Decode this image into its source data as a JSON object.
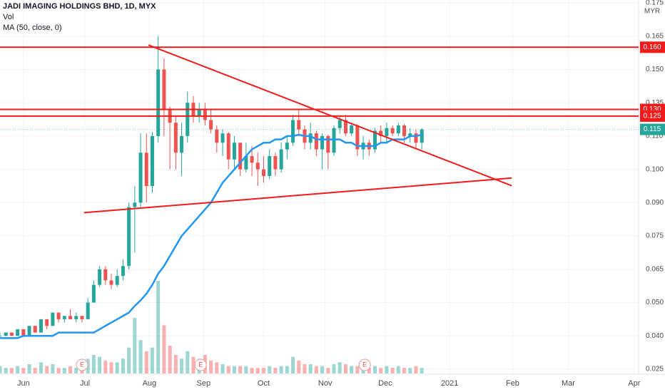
{
  "chart_data": {
    "type": "candlestick",
    "title": "JADI IMAGING HOLDINGS BHD, 1D, MYX",
    "legend_items": [
      "Vol",
      "MA (50, close, 0)"
    ],
    "currency": "MYR",
    "up_color": "#26a69a",
    "down_color": "#ef5350",
    "ma_color": "#2196f3",
    "x": [
      0,
      2,
      4,
      6,
      8,
      10,
      12,
      14,
      16,
      18,
      20,
      22,
      24,
      26,
      28,
      30,
      32,
      34,
      36,
      38,
      40,
      42,
      44,
      46,
      48,
      50,
      52,
      54,
      56,
      58,
      60,
      62,
      64,
      66,
      68,
      70,
      72,
      74,
      76,
      78,
      80,
      82,
      84,
      86,
      88,
      90,
      92,
      94,
      96,
      98,
      100,
      102,
      104,
      106,
      108,
      110,
      112,
      114,
      116,
      118,
      120,
      122,
      124,
      126,
      128,
      130,
      132,
      134,
      136,
      138,
      140,
      142,
      144
    ],
    "open": [
      0.04,
      0.04,
      0.041,
      0.04,
      0.042,
      0.04,
      0.043,
      0.041,
      0.045,
      0.043,
      0.047,
      0.045,
      0.046,
      0.045,
      0.046,
      0.045,
      0.05,
      0.058,
      0.065,
      0.06,
      0.058,
      0.062,
      0.066,
      0.088,
      0.09,
      0.105,
      0.095,
      0.11,
      0.15,
      0.13,
      0.12,
      0.105,
      0.11,
      0.135,
      0.125,
      0.13,
      0.122,
      0.115,
      0.108,
      0.112,
      0.103,
      0.108,
      0.1,
      0.104,
      0.102,
      0.1,
      0.098,
      0.104,
      0.1,
      0.106,
      0.108,
      0.122,
      0.115,
      0.108,
      0.112,
      0.106,
      0.11,
      0.105,
      0.116,
      0.122,
      0.112,
      0.118,
      0.106,
      0.108,
      0.106,
      0.114,
      0.11,
      0.116,
      0.112,
      0.118,
      0.11,
      0.112,
      0.108
    ],
    "high": [
      0.041,
      0.041,
      0.041,
      0.042,
      0.042,
      0.043,
      0.043,
      0.045,
      0.045,
      0.047,
      0.047,
      0.046,
      0.048,
      0.047,
      0.046,
      0.052,
      0.06,
      0.066,
      0.066,
      0.063,
      0.065,
      0.068,
      0.09,
      0.095,
      0.112,
      0.112,
      0.113,
      0.165,
      0.155,
      0.132,
      0.125,
      0.12,
      0.14,
      0.138,
      0.135,
      0.135,
      0.13,
      0.118,
      0.115,
      0.113,
      0.11,
      0.108,
      0.108,
      0.107,
      0.105,
      0.104,
      0.106,
      0.105,
      0.108,
      0.11,
      0.126,
      0.13,
      0.118,
      0.12,
      0.114,
      0.112,
      0.111,
      0.118,
      0.125,
      0.126,
      0.12,
      0.119,
      0.11,
      0.109,
      0.116,
      0.118,
      0.12,
      0.118,
      0.12,
      0.119,
      0.116,
      0.115,
      0.116
    ],
    "low": [
      0.04,
      0.04,
      0.04,
      0.04,
      0.04,
      0.04,
      0.041,
      0.041,
      0.042,
      0.043,
      0.044,
      0.044,
      0.045,
      0.044,
      0.044,
      0.045,
      0.05,
      0.057,
      0.058,
      0.056,
      0.057,
      0.06,
      0.065,
      0.07,
      0.088,
      0.09,
      0.093,
      0.108,
      0.11,
      0.1,
      0.1,
      0.098,
      0.108,
      0.12,
      0.12,
      0.118,
      0.112,
      0.105,
      0.104,
      0.1,
      0.1,
      0.098,
      0.099,
      0.098,
      0.095,
      0.096,
      0.097,
      0.098,
      0.099,
      0.103,
      0.107,
      0.11,
      0.106,
      0.106,
      0.104,
      0.1,
      0.1,
      0.104,
      0.112,
      0.11,
      0.11,
      0.104,
      0.103,
      0.104,
      0.105,
      0.108,
      0.108,
      0.11,
      0.11,
      0.108,
      0.108,
      0.106,
      0.106
    ],
    "close": [
      0.04,
      0.041,
      0.04,
      0.042,
      0.04,
      0.043,
      0.041,
      0.045,
      0.043,
      0.047,
      0.045,
      0.046,
      0.045,
      0.046,
      0.045,
      0.05,
      0.058,
      0.065,
      0.06,
      0.058,
      0.062,
      0.066,
      0.088,
      0.09,
      0.105,
      0.095,
      0.11,
      0.15,
      0.13,
      0.12,
      0.105,
      0.11,
      0.135,
      0.125,
      0.13,
      0.122,
      0.115,
      0.108,
      0.112,
      0.103,
      0.108,
      0.1,
      0.104,
      0.102,
      0.1,
      0.098,
      0.104,
      0.1,
      0.106,
      0.108,
      0.122,
      0.115,
      0.108,
      0.112,
      0.106,
      0.11,
      0.105,
      0.116,
      0.122,
      0.112,
      0.118,
      0.106,
      0.108,
      0.106,
      0.114,
      0.11,
      0.116,
      0.112,
      0.118,
      0.11,
      0.112,
      0.108,
      0.115
    ],
    "volume": [
      4,
      3,
      3,
      4,
      3,
      5,
      3,
      6,
      4,
      5,
      3,
      3,
      4,
      3,
      4,
      8,
      10,
      9,
      7,
      6,
      6,
      8,
      14,
      30,
      18,
      12,
      14,
      50,
      26,
      15,
      10,
      8,
      12,
      9,
      8,
      10,
      7,
      6,
      5,
      4,
      4,
      4,
      4,
      3,
      3,
      3,
      4,
      3,
      4,
      4,
      9,
      7,
      5,
      5,
      4,
      4,
      3,
      5,
      6,
      5,
      4,
      4,
      3,
      3,
      4,
      3,
      4,
      3,
      4,
      3,
      3,
      4,
      3
    ],
    "ma": [
      0.039,
      0.039,
      0.039,
      0.039,
      0.04,
      0.04,
      0.04,
      0.04,
      0.04,
      0.04,
      0.041,
      0.041,
      0.041,
      0.041,
      0.041,
      0.041,
      0.041,
      0.042,
      0.043,
      0.044,
      0.045,
      0.046,
      0.047,
      0.049,
      0.051,
      0.054,
      0.058,
      0.063,
      0.066,
      0.069,
      0.072,
      0.075,
      0.078,
      0.081,
      0.084,
      0.087,
      0.09,
      0.093,
      0.096,
      0.098,
      0.1,
      0.102,
      0.104,
      0.106,
      0.107,
      0.108,
      0.108,
      0.109,
      0.109,
      0.11,
      0.11,
      0.111,
      0.11,
      0.11,
      0.109,
      0.109,
      0.109,
      0.109,
      0.109,
      0.108,
      0.108,
      0.107,
      0.107,
      0.107,
      0.107,
      0.108,
      0.108,
      0.109,
      0.109,
      0.109,
      0.11,
      0.11,
      0.111
    ],
    "xlim": [
      0,
      218
    ],
    "xticks": [
      {
        "value": 8,
        "label": "Jun"
      },
      {
        "value": 29,
        "label": "Jul"
      },
      {
        "value": 51,
        "label": "Aug"
      },
      {
        "value": 69.5,
        "label": "Sep"
      },
      {
        "value": 90,
        "label": "Oct"
      },
      {
        "value": 111,
        "label": "Nov"
      },
      {
        "value": 131.5,
        "label": "Dec"
      },
      {
        "value": 153.5,
        "label": "2021"
      },
      {
        "value": 175,
        "label": "Feb"
      },
      {
        "value": 194,
        "label": "Mar"
      },
      {
        "value": 216.5,
        "label": "Apr"
      }
    ],
    "ylim": [
      0.025,
      0.175
    ],
    "yticks": [
      0.175,
      0.165,
      {
        "value": 0.15,
        "label": "0.150"
      },
      0.135,
      {
        "value": 0.11,
        "label": "0.110"
      },
      {
        "value": 0.1,
        "label": "0.100"
      },
      {
        "value": 0.09,
        "label": "0.090"
      },
      0.075,
      0.065,
      {
        "value": 0.05,
        "label": "0.050"
      },
      {
        "value": 0.04,
        "label": "0.040"
      },
      0.025
    ],
    "hlines": {
      "values": [
        0.16,
        0.13,
        0.125
      ],
      "value_labels": [
        "0.160",
        "0.130",
        "0.125"
      ],
      "color": "#f21b1b"
    },
    "last_price": {
      "value": 0.115,
      "value_label": "0.115",
      "color": "#26a69a"
    },
    "trendlines": [
      {
        "x": [
          50.7,
          174.7
        ],
        "y": [
          0.161,
          0.0951
        ]
      },
      {
        "x": [
          28.7,
          174.7
        ],
        "y": [
          0.0855,
          0.0974
        ]
      }
    ],
    "earnings": {
      "x": [
        28,
        68.5,
        124.5
      ],
      "label": "E"
    }
  }
}
